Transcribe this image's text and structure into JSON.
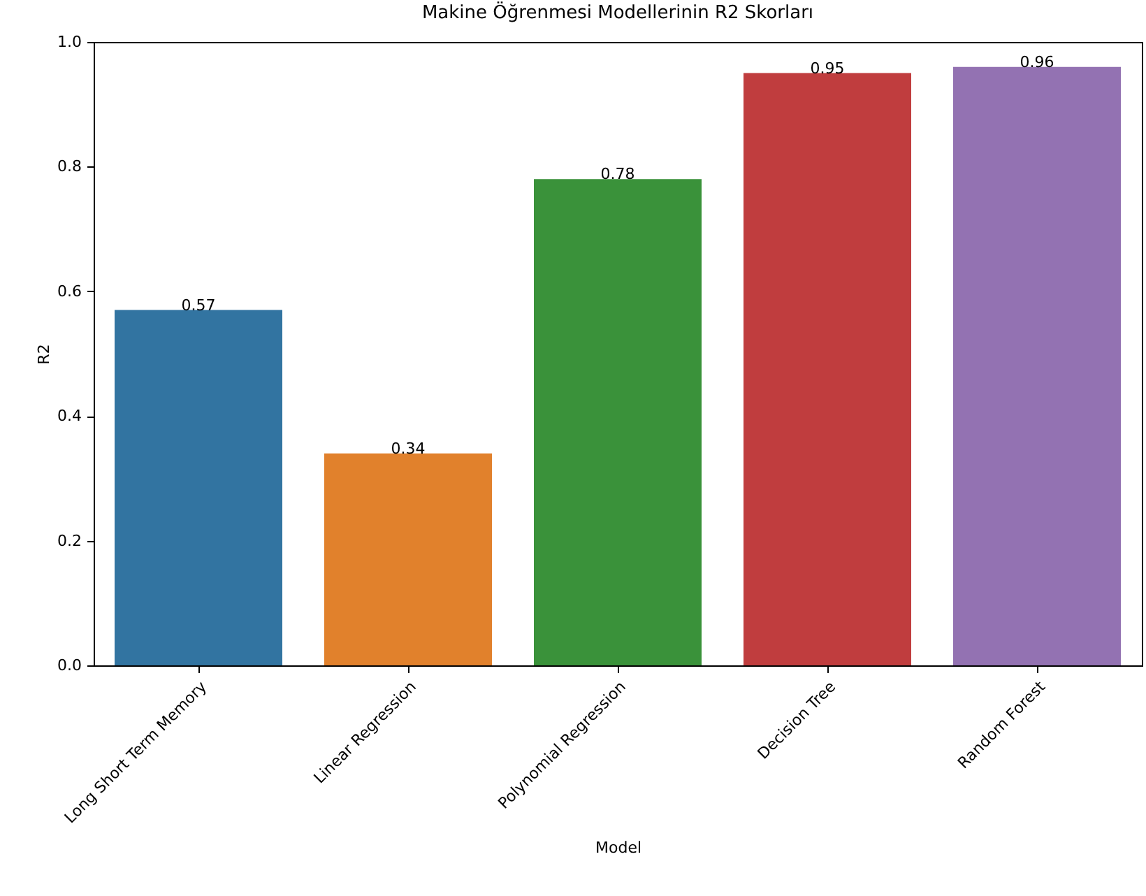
{
  "chart_data": {
    "type": "bar",
    "title": "Makine Öğrenmesi Modellerinin R2 Skorları",
    "xlabel": "Model",
    "ylabel": "R2",
    "categories": [
      "Long Short Term Memory",
      "Linear Regression",
      "Polynomial Regression",
      "Decision Tree",
      "Random Forest"
    ],
    "values": [
      0.57,
      0.34,
      0.78,
      0.95,
      0.96
    ],
    "colors": [
      "#3274a1",
      "#e1812c",
      "#3a923a",
      "#c03d3e",
      "#9372b2"
    ],
    "ylim": [
      0,
      1.0
    ],
    "yticks": [
      {
        "value": 0,
        "label": "0.0"
      },
      0.2,
      0.4,
      0.6,
      0.8,
      {
        "value": 1,
        "label": "1.0"
      }
    ],
    "grid": false,
    "data_labels": true
  }
}
